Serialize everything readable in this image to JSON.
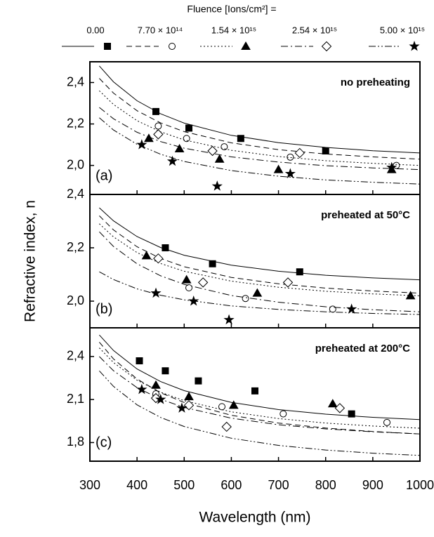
{
  "chart_data": {
    "type": "line",
    "legend_title": "Fluence [Ions/cm²] =",
    "xlabel": "Wavelength (nm)",
    "ylabel": "Refractive index, n",
    "xlim": [
      300,
      1000
    ],
    "xticks": [
      300,
      400,
      500,
      600,
      700,
      800,
      900,
      1000
    ],
    "series": [
      {
        "name": "0.00",
        "color": "#000000",
        "dash": "solid",
        "marker": "square"
      },
      {
        "name": "7.70 × 10¹⁴",
        "color": "#000000",
        "dash": "dashed",
        "marker": "circle"
      },
      {
        "name": "1.54 × 10¹⁵",
        "color": "#000000",
        "dash": "dotted",
        "marker": "triangle"
      },
      {
        "name": "2.54 × 10¹⁵",
        "color": "#000000",
        "dash": "dashdot",
        "marker": "diamond"
      },
      {
        "name": "5.00 × 10¹⁵",
        "color": "#000000",
        "dash": "dashdotdot",
        "marker": "star"
      }
    ],
    "curve_x": [
      320,
      350,
      400,
      450,
      500,
      600,
      700,
      800,
      900,
      1000
    ],
    "panels": [
      {
        "label": "(a)",
        "annotation": "no preheating",
        "ylim": [
          1.86,
          2.5
        ],
        "yticks": [
          {
            "value": 2.0,
            "label": "2,0"
          },
          {
            "value": 2.2,
            "label": "2,2"
          },
          {
            "value": 2.4,
            "label": "2,4"
          }
        ],
        "data": [
          {
            "curve": [
              2.48,
              2.403,
              2.312,
              2.249,
              2.204,
              2.145,
              2.11,
              2.087,
              2.071,
              2.06
            ],
            "x": [
              440,
              510,
              620,
              800
            ],
            "y": [
              2.26,
              2.18,
              2.13,
              2.07
            ]
          },
          {
            "curve": [
              2.42,
              2.349,
              2.264,
              2.205,
              2.163,
              2.109,
              2.076,
              2.055,
              2.041,
              2.03
            ],
            "x": [
              445,
              505,
              585,
              725,
              950
            ],
            "y": [
              2.19,
              2.13,
              2.09,
              2.04,
              2.0
            ]
          },
          {
            "curve": [
              2.36,
              2.294,
              2.216,
              2.162,
              2.123,
              2.073,
              2.043,
              2.023,
              2.01,
              2.0
            ],
            "x": [
              425,
              490,
              575,
              700,
              940
            ],
            "y": [
              2.13,
              2.08,
              2.03,
              1.98,
              1.98
            ]
          },
          {
            "curve": [
              2.28,
              2.225,
              2.16,
              2.115,
              2.083,
              2.041,
              2.016,
              1.999,
              1.988,
              1.98
            ],
            "x": [
              445,
              560,
              745
            ],
            "y": [
              2.15,
              2.07,
              2.06
            ]
          },
          {
            "curve": [
              2.23,
              2.171,
              2.102,
              2.054,
              2.019,
              1.975,
              1.948,
              1.93,
              1.919,
              1.91
            ],
            "x": [
              410,
              475,
              570,
              725,
              940
            ],
            "y": [
              2.1,
              2.02,
              1.9,
              1.96,
              1.99
            ]
          }
        ]
      },
      {
        "label": "(b)",
        "annotation": "preheated at 50°C",
        "ylim": [
          1.9,
          2.4
        ],
        "yticks": [
          {
            "value": 2.0,
            "label": "2,0"
          },
          {
            "value": 2.2,
            "label": "2,2"
          },
          {
            "value": 2.4,
            "label": "2,4"
          }
        ],
        "data": [
          {
            "curve": [
              2.35,
              2.301,
              2.242,
              2.201,
              2.172,
              2.135,
              2.112,
              2.097,
              2.087,
              2.08
            ],
            "x": [
              460,
              560,
              745
            ],
            "y": [
              2.2,
              2.14,
              2.11
            ]
          },
          {
            "curve": [
              2.32,
              2.267,
              2.204,
              2.16,
              2.129,
              2.089,
              2.065,
              2.049,
              2.038,
              2.03
            ],
            "x": [
              510,
              630,
              815
            ],
            "y": [
              2.05,
              2.01,
              1.97
            ]
          },
          {
            "curve": [
              2.29,
              2.241,
              2.182,
              2.141,
              2.112,
              2.075,
              2.052,
              2.037,
              2.027,
              2.02
            ],
            "x": [
              420,
              505,
              655,
              980
            ],
            "y": [
              2.17,
              2.08,
              2.03,
              2.02
            ]
          },
          {
            "curve": [
              2.26,
              2.205,
              2.14,
              2.095,
              2.063,
              2.021,
              1.996,
              1.979,
              1.968,
              1.96
            ],
            "x": [
              445,
              540,
              720
            ],
            "y": [
              2.16,
              2.07,
              2.07
            ]
          },
          {
            "curve": [
              2.11,
              2.081,
              2.046,
              2.022,
              2.005,
              1.982,
              1.969,
              1.96,
              1.954,
              1.95
            ],
            "x": [
              440,
              520,
              595,
              855
            ],
            "y": [
              2.03,
              2.0,
              1.93,
              1.97
            ]
          }
        ]
      },
      {
        "label": "(c)",
        "annotation": "preheated at 200°C",
        "ylim": [
          1.67,
          2.6
        ],
        "yticks": [
          {
            "value": 1.8,
            "label": "1,8"
          },
          {
            "value": 2.1,
            "label": "2,1"
          },
          {
            "value": 2.4,
            "label": "2,4"
          }
        ],
        "data": [
          {
            "curve": [
              2.55,
              2.442,
              2.313,
              2.225,
              2.162,
              2.08,
              2.03,
              1.998,
              1.976,
              1.96
            ],
            "x": [
              405,
              460,
              530,
              650,
              855
            ],
            "y": [
              2.37,
              2.3,
              2.23,
              2.16,
              2.0
            ]
          },
          {
            "curve": [
              2.5,
              2.383,
              2.243,
              2.147,
              2.079,
              1.99,
              1.936,
              1.901,
              1.877,
              1.86
            ],
            "x": [
              440,
              580,
              710,
              930
            ],
            "y": [
              2.14,
              2.05,
              2.0,
              1.94
            ]
          },
          {
            "curve": [
              2.46,
              2.358,
              2.235,
              2.151,
              2.092,
              2.014,
              1.967,
              1.936,
              1.915,
              1.9
            ],
            "x": [
              440,
              510,
              605,
              815
            ],
            "y": [
              2.2,
              2.12,
              2.06,
              2.07
            ]
          },
          {
            "curve": [
              2.4,
              2.301,
              2.183,
              2.102,
              2.045,
              1.97,
              1.924,
              1.895,
              1.875,
              1.86
            ],
            "x": [
              440,
              510,
              590,
              830
            ],
            "y": [
              2.11,
              2.06,
              1.91,
              2.04
            ]
          },
          {
            "curve": [
              2.3,
              2.192,
              2.063,
              1.975,
              1.912,
              1.83,
              1.78,
              1.748,
              1.726,
              1.71
            ],
            "x": [
              410,
              450,
              495
            ],
            "y": [
              2.17,
              2.1,
              2.04
            ]
          }
        ]
      }
    ]
  }
}
